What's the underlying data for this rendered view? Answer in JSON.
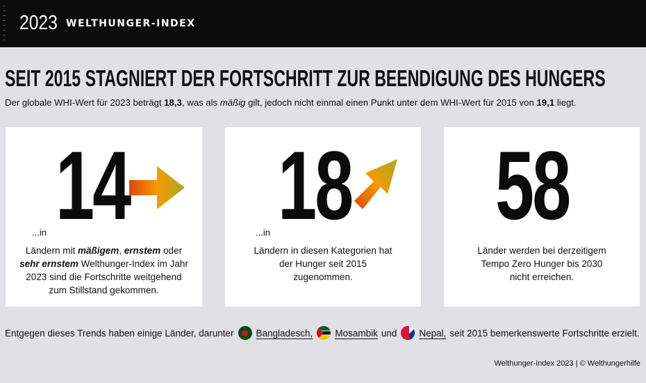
{
  "header": {
    "year": "2023",
    "brand": "WELTHUNGER-INDEX"
  },
  "title": "SEIT 2015 STAGNIERT DER FORTSCHRITT ZUR BEENDIGUNG DES HUNGERS",
  "subtitle": {
    "p1": "Der globale WHI-Wert für 2023 beträgt ",
    "v1": "18,3",
    "p2": ", was als ",
    "mid": "mäßig",
    "p3": " gilt, jedoch nicht einmal einen Punkt unter dem WHI-Wert für 2015 von ",
    "v2": "19,1",
    "p4": " liegt."
  },
  "cards": [
    {
      "number": "14",
      "prefix": "...in",
      "l1a": "Ländern mit ",
      "l1b": "mäßigem",
      "l1c": ", ",
      "l1d": "ernstem",
      "l1e": " oder",
      "l2a": "sehr ernstem",
      "l2b": " Welthunger-Index im Jahr",
      "l3": "2023 sind die Fortschritte weitgehend",
      "l4": "zum Stillstand gekommen.",
      "arrow": "arrow-right"
    },
    {
      "number": "18",
      "prefix": "...in",
      "l1": "Ländern in diesen Kategorien hat",
      "l2": "der Hunger seit 2015",
      "l3": "zugenommen.",
      "arrow": "arrow-up-right"
    },
    {
      "number": "58",
      "l1": "Länder werden bei derzeitigem",
      "l2": "Tempo Zero Hunger bis 2030",
      "l3": "nicht erreichen."
    }
  ],
  "bottom": {
    "p1": "Entgegen dieses Trends haben einige Länder, darunter",
    "c1": "Bangladesch,",
    "c2": "Mosambik",
    "und": "und",
    "c3": "Nepal,",
    "p2": "seit 2015 bemerkenswerte Fortschritte erzielt."
  },
  "footer": "Welthunger-Index 2023 | © Welthungerhilfe",
  "colors": {
    "arrow_start": "#d9480f",
    "arrow_mid": "#f59a00",
    "arrow_end": "#a8a82a"
  }
}
